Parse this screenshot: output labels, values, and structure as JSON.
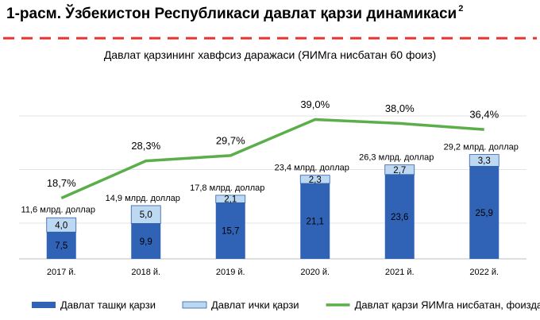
{
  "chart_data": {
    "type": "bar-line",
    "title": "1-расм. Ўзбекистон Республикаси давлат қарзи динамикаси",
    "title_note": "2",
    "categories": [
      "2017 й.",
      "2018 й.",
      "2019 й.",
      "2020 й.",
      "2021 й.",
      "2022 й."
    ],
    "series": [
      {
        "name": "Давлат ташқи қарзи",
        "type": "bar",
        "color": "#3063b6",
        "values": [
          7.5,
          9.9,
          15.7,
          21.1,
          23.6,
          25.9
        ],
        "value_labels": [
          "7,5",
          "9,9",
          "15,7",
          "21,1",
          "23,6",
          "25,9"
        ]
      },
      {
        "name": "Давлат ички қарзи",
        "type": "bar",
        "color": "#bdd8f1",
        "values": [
          4.0,
          5.0,
          2.1,
          2.3,
          2.7,
          3.3
        ],
        "value_labels": [
          "4,0",
          "5,0",
          "2,1",
          "2,3",
          "2,7",
          "3,3"
        ]
      },
      {
        "name": "Давлат қарзи ЯИМга нисбатан, фоизда",
        "type": "line",
        "axis": "y2",
        "color": "#5bae4a",
        "values": [
          18.7,
          28.3,
          29.7,
          39.0,
          38.0,
          36.4
        ],
        "value_labels": [
          "18,7%",
          "28,3%",
          "29,7%",
          "39,0%",
          "38,0%",
          "36,4%"
        ]
      }
    ],
    "totals": {
      "values": [
        11.6,
        14.9,
        17.8,
        23.4,
        26.3,
        29.2
      ],
      "value_labels": [
        "11,6 млрд. доллар",
        "14,9 млрд. доллар",
        "17,8 млрд. доллар",
        "23,4 млрд. доллар",
        "26,3 млрд. доллар",
        "29,2 млрд. доллар"
      ]
    },
    "threshold": {
      "value": 60,
      "axis": "y2",
      "color": "#e8322c",
      "label": "Давлат қарзининг хавфсиз даражаси (ЯИМга нисбатан 60 фоиз)"
    },
    "ylim": [
      0,
      52
    ],
    "yticks": [
      0,
      10,
      25,
      40
    ],
    "y2lim": [
      3,
      51
    ],
    "grid": true
  }
}
